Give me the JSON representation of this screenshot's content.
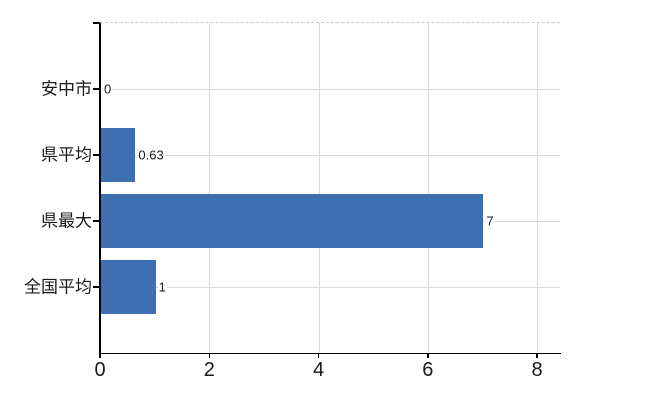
{
  "chart_data": {
    "type": "bar",
    "orientation": "horizontal",
    "title": "",
    "xlabel": "",
    "ylabel": "",
    "categories": [
      "安中市",
      "県平均",
      "県最大",
      "全国平均"
    ],
    "values": [
      0,
      0.63,
      7,
      1
    ],
    "value_labels": [
      "0",
      "0.63",
      "7",
      "1"
    ],
    "xlim": [
      0,
      8
    ],
    "x_tick_values": [
      0,
      2,
      4,
      6,
      8
    ],
    "x_tick_labels": [
      "0",
      "2",
      "4",
      "6",
      "8"
    ],
    "grid": true,
    "legend": false,
    "colors": {
      "bar": "#3e6fb3",
      "axis": "#000000",
      "gridline": "#d9d9d9",
      "top_border": "#c9c9c9",
      "text": "#1a1a1a",
      "background": "#ffffff"
    }
  }
}
